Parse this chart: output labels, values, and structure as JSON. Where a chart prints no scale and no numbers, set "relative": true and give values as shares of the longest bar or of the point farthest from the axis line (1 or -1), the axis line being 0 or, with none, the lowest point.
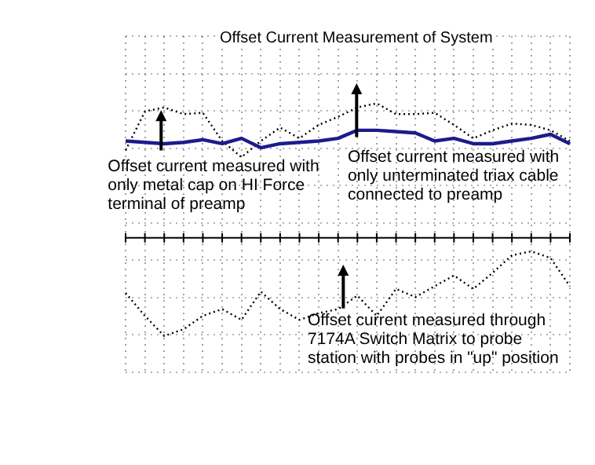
{
  "chart_data": {
    "type": "line",
    "title": "Offset Current Measurement of System",
    "relative": true,
    "grid": true,
    "marker": "none",
    "legend": false,
    "categories": [
      null,
      null,
      null,
      null,
      null,
      null,
      null,
      null,
      null,
      null,
      null,
      null,
      null,
      null,
      null,
      null,
      null,
      null,
      null,
      null,
      null,
      null,
      null,
      null
    ],
    "series": [
      {
        "color": "#1c1c8c",
        "line_style": "solid",
        "values": [
          0.72,
          0.71,
          0.7,
          0.71,
          0.73,
          0.7,
          0.74,
          0.67,
          0.7,
          0.71,
          0.72,
          0.74,
          0.8,
          0.8,
          0.79,
          0.78,
          0.72,
          0.74,
          0.7,
          0.7,
          0.72,
          0.74,
          0.77,
          0.7
        ]
      },
      {
        "color": "#000000",
        "line_style": "dotted",
        "values": [
          0.65,
          0.94,
          0.97,
          0.92,
          0.93,
          0.72,
          0.6,
          0.72,
          0.82,
          0.74,
          0.84,
          0.9,
          0.97,
          1.0,
          0.92,
          0.92,
          0.93,
          0.84,
          0.74,
          0.8,
          0.85,
          0.84,
          0.8,
          0.72
        ]
      },
      {
        "color": "#000000",
        "line_style": "dotted",
        "values": [
          -0.41,
          -0.58,
          -0.73,
          -0.68,
          -0.58,
          -0.53,
          -0.61,
          -0.4,
          -0.53,
          -0.61,
          -0.56,
          -0.53,
          -0.43,
          -0.58,
          -0.38,
          -0.44,
          -0.36,
          -0.28,
          -0.38,
          -0.26,
          -0.13,
          -0.1,
          -0.15,
          -0.36
        ]
      }
    ],
    "annotations": [
      "Offset current measured with only metal cap on HI Force terminal of preamp",
      "Offset current measured with only unterminated triax cable connected to preamp",
      "Offset current measured through 7174A Switch Matrix to probe station with probes in \"up\" position"
    ]
  }
}
